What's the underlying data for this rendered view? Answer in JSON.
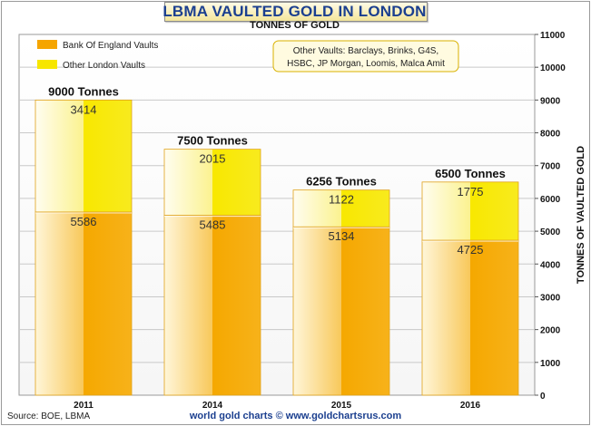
{
  "chart_data": {
    "type": "bar",
    "stacked": true,
    "title": "LBMA VAULTED GOLD IN LONDON",
    "subtitle": "TONNES OF GOLD",
    "ylabel": "TONNES OF VAULTED GOLD",
    "ylim": [
      0,
      11000
    ],
    "yticks": [
      0,
      1000,
      2000,
      3000,
      4000,
      5000,
      6000,
      7000,
      8000,
      9000,
      10000,
      11000
    ],
    "y_axis_side": "right",
    "grid": true,
    "categories": [
      "2011",
      "2014",
      "2015",
      "2016"
    ],
    "series": [
      {
        "name": "Bank Of England Vaults",
        "values": [
          5586,
          5485,
          5134,
          4725
        ],
        "color": "#f5a500"
      },
      {
        "name": "Other London Vaults",
        "values": [
          3414,
          2015,
          1122,
          1775
        ],
        "color": "#f7e600"
      }
    ],
    "totals": [
      "9000 Tonnes",
      "7500 Tonnes",
      "6256 Tonnes",
      "6500 Tonnes"
    ],
    "legend_position": "top-left",
    "annotation": "Other Vaults: Barclays, Brinks, G4S, HSBC, JP Morgan, Loomis, Malca Amit"
  },
  "footer": {
    "source": "Source: BOE, LBMA",
    "credit": "world gold charts © www.goldchartsrus.com"
  }
}
